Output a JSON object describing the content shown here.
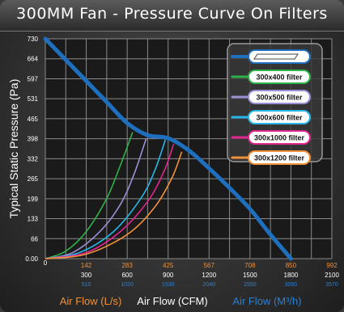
{
  "title": "300MM Fan - Pressure Curve On Filters",
  "ylabel": "Typical Static Pressure  (Pa)",
  "xlabels": [
    {
      "text": "Air Flow (L/s)",
      "color": "#f0913a"
    },
    {
      "text": "Air Flow (CFM)",
      "color": "#ffffff"
    },
    {
      "text": "Air Flow (M³/h)",
      "color": "#2f7fd0"
    }
  ],
  "colors": {
    "grid": "#8a8a8a",
    "plot_bg": "#1a1a1a",
    "fan": "#1f6fbf",
    "ls_ticks": "#f0913a",
    "cfm_ticks": "#ffffff",
    "m3h_ticks": "#2f7fd0"
  },
  "chart_data": {
    "type": "line",
    "title": "300MM Fan - Pressure Curve On Filters",
    "ylim": [
      0,
      730
    ],
    "y_ticks": [
      "0.00",
      "66",
      "133",
      "199",
      "265",
      "332",
      "398",
      "465",
      "531",
      "597",
      "664",
      "730"
    ],
    "xlim_cfm": [
      0,
      2100
    ],
    "x_ticks_cfm": [
      "0",
      "300",
      "600",
      "900",
      "1200",
      "1500",
      "1800",
      "2100"
    ],
    "x_ticks_ls": [
      "142",
      "283",
      "425",
      "567",
      "708",
      "850",
      "992"
    ],
    "x_ticks_m3h": [
      "510",
      "1020",
      "1530",
      "2040",
      "2550",
      "3060",
      "3570"
    ],
    "grid": true,
    "legend_placement": "top-right",
    "series": [
      {
        "name": "",
        "color": "#1f6fbf",
        "legend_logo": true,
        "x": [
          0,
          150,
          300,
          450,
          600,
          750,
          900,
          1050,
          1200,
          1350,
          1500,
          1650,
          1800
        ],
        "y": [
          730,
          660,
          590,
          520,
          450,
          410,
          400,
          360,
          300,
          235,
          165,
          80,
          0
        ]
      },
      {
        "name": "300x400 filter",
        "color": "#2db34a",
        "x": [
          0,
          150,
          300,
          450,
          550,
          640
        ],
        "y": [
          0,
          25,
          90,
          200,
          310,
          420
        ]
      },
      {
        "name": "300x500 filter",
        "color": "#9b8fd6",
        "x": [
          0,
          200,
          400,
          550,
          650,
          740
        ],
        "y": [
          0,
          20,
          90,
          180,
          280,
          400
        ]
      },
      {
        "name": "300x600 filter",
        "color": "#26b6e8",
        "x": [
          0,
          250,
          500,
          700,
          800,
          880
        ],
        "y": [
          0,
          20,
          90,
          200,
          290,
          395
        ]
      },
      {
        "name": "300x1000 filter",
        "color": "#e0268f",
        "x": [
          0,
          300,
          550,
          750,
          870,
          940
        ],
        "y": [
          0,
          20,
          90,
          190,
          290,
          380
        ]
      },
      {
        "name": "300x1200 filter",
        "color": "#f0913a",
        "x": [
          0,
          300,
          600,
          800,
          930,
          1000
        ],
        "y": [
          0,
          15,
          80,
          170,
          270,
          355
        ]
      }
    ]
  }
}
